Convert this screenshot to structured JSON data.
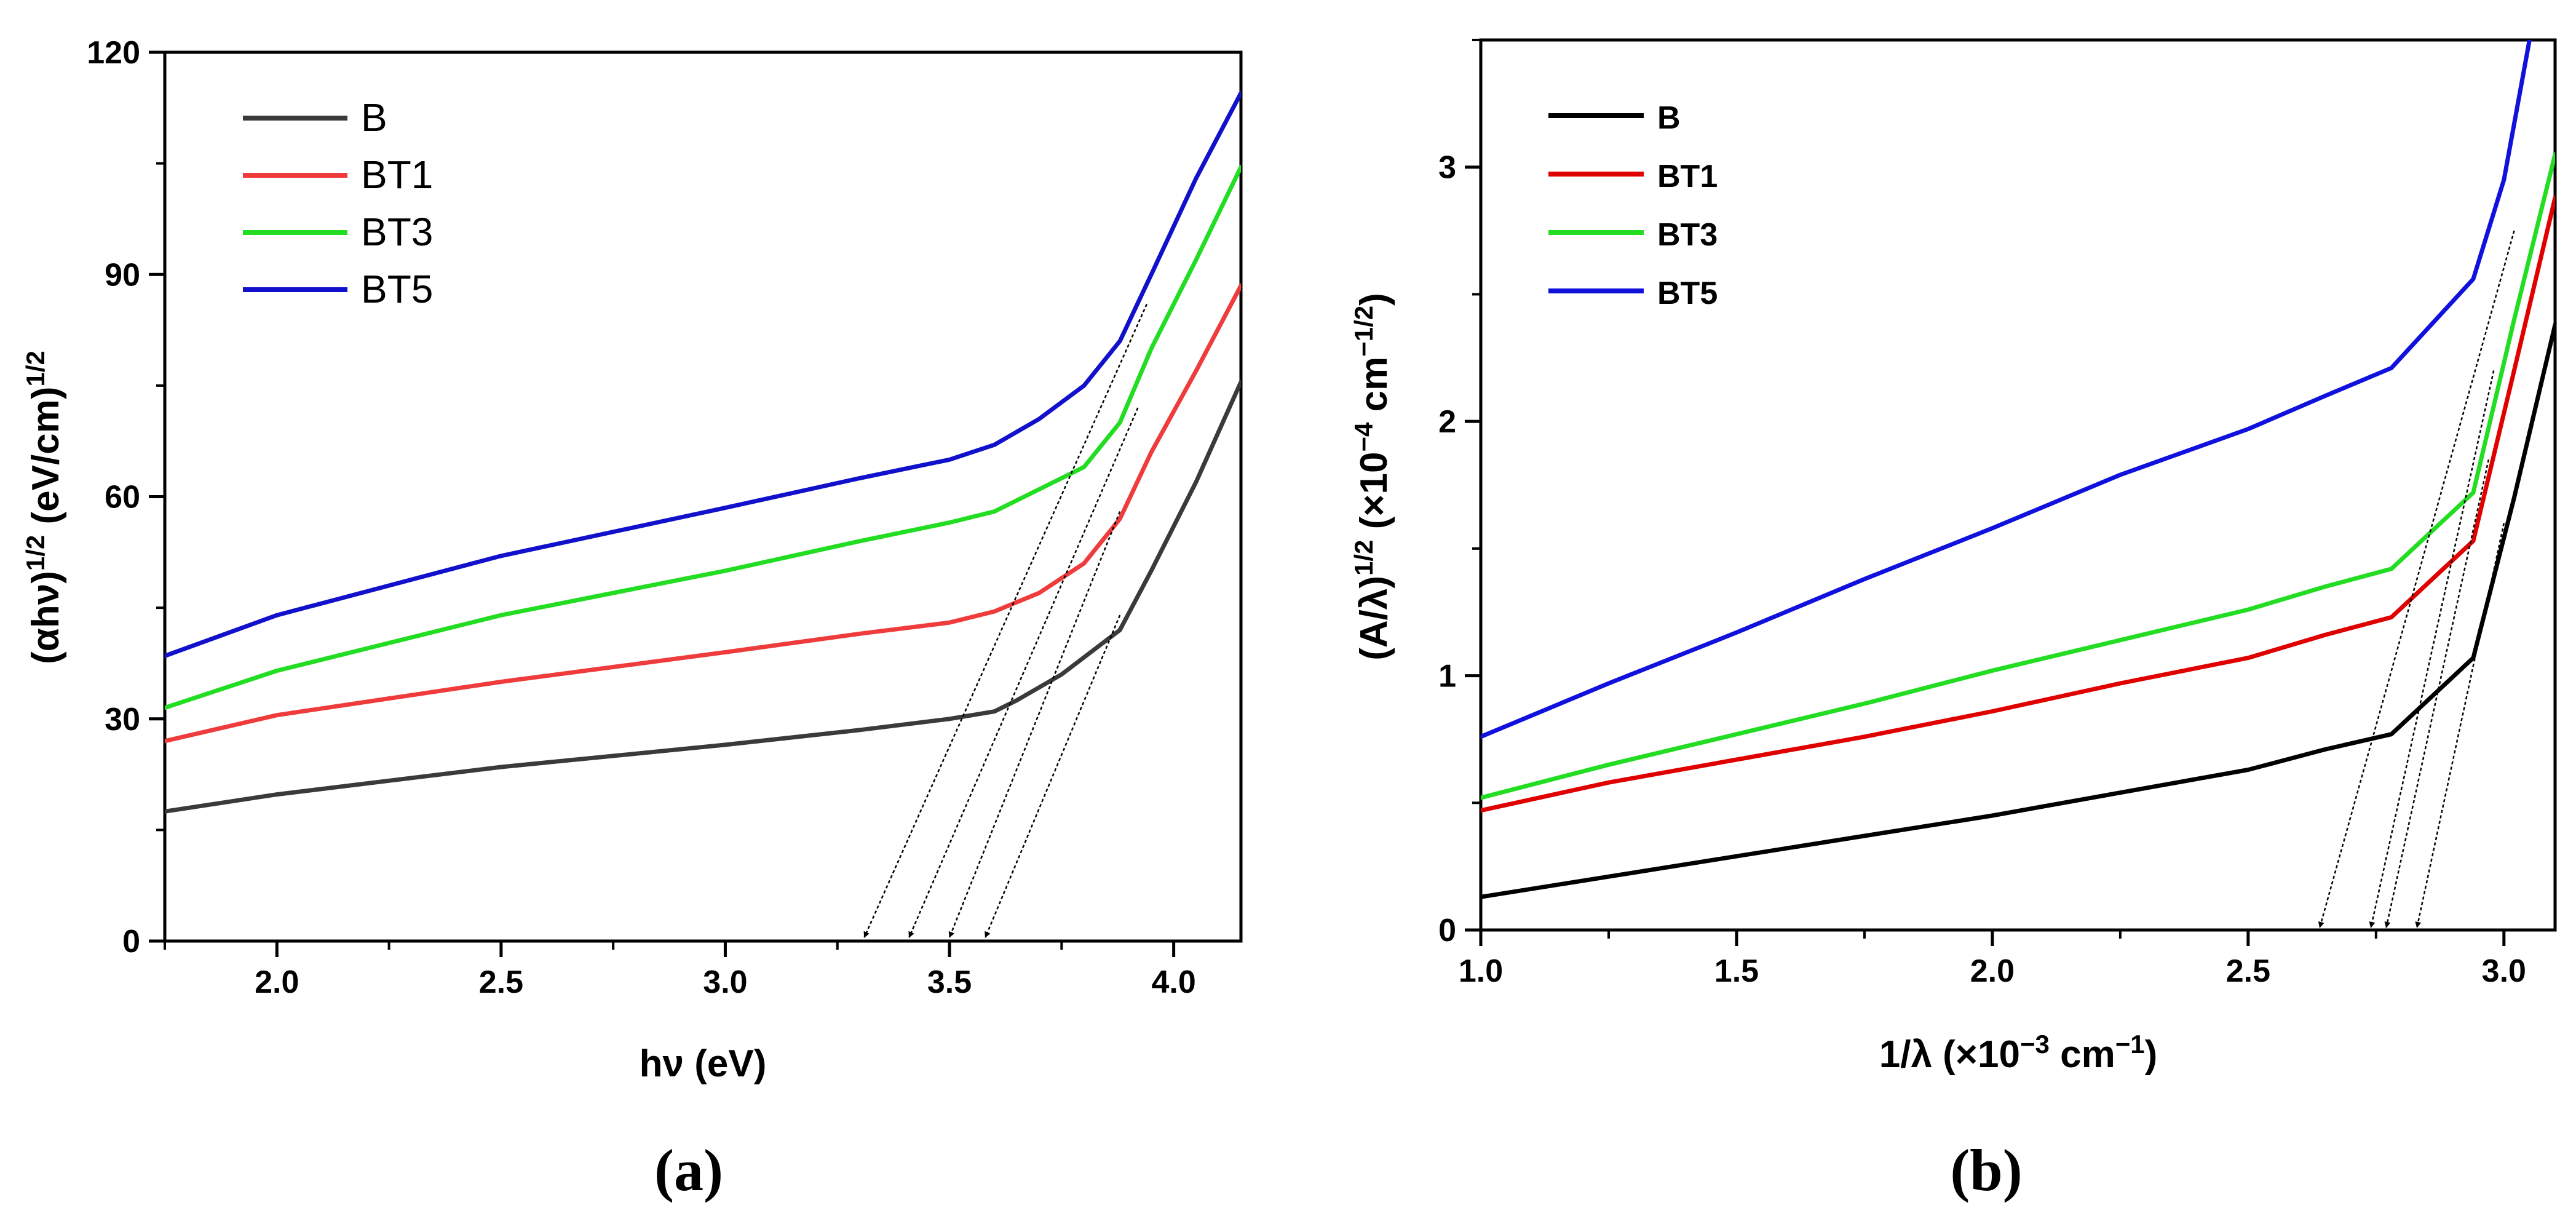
{
  "chart_data": [
    {
      "panel": "(a)",
      "type": "line",
      "xlabel": "hν (eV)",
      "ylabel": "(αhν)^1/2 (eV/cm)^1/2",
      "ylabel_main": "(αhν)",
      "ylabel_sup1": "1/2",
      "ylabel_unit": " (eV/cm)",
      "ylabel_sup2": "1/2",
      "xlim": [
        1.75,
        4.15
      ],
      "ylim": [
        0,
        120
      ],
      "xticks": [
        2.0,
        2.5,
        3.0,
        3.5,
        4.0
      ],
      "xtick_labels": [
        "2.0",
        "2.5",
        "3.0",
        "3.5",
        "4.0"
      ],
      "yticks": [
        0,
        30,
        60,
        90,
        120
      ],
      "ytick_labels": [
        "0",
        "30",
        "60",
        "90",
        "120"
      ],
      "legend_position": "top-left",
      "series": [
        {
          "name": "B",
          "color": "#3a3a3a",
          "x": [
            1.75,
            2.0,
            2.5,
            3.0,
            3.3,
            3.5,
            3.6,
            3.65,
            3.75,
            3.88,
            3.95,
            4.05,
            4.15
          ],
          "y": [
            17.5,
            19.8,
            23.5,
            26.5,
            28.5,
            30,
            31,
            32.5,
            36,
            42,
            50,
            62,
            75.5
          ]
        },
        {
          "name": "BT1",
          "color": "#ef3b3b",
          "x": [
            1.75,
            2.0,
            2.5,
            3.0,
            3.3,
            3.5,
            3.6,
            3.7,
            3.8,
            3.88,
            3.95,
            4.05,
            4.15
          ],
          "y": [
            27,
            30.5,
            35,
            39,
            41.5,
            43,
            44.5,
            47,
            51,
            57,
            66,
            77,
            88.5
          ]
        },
        {
          "name": "BT3",
          "color": "#22dd22",
          "x": [
            1.75,
            2.0,
            2.5,
            3.0,
            3.3,
            3.5,
            3.6,
            3.7,
            3.8,
            3.88,
            3.95,
            4.05,
            4.15
          ],
          "y": [
            31.5,
            36.5,
            44,
            50,
            54,
            56.5,
            58,
            61,
            64,
            70,
            80,
            92,
            104.5
          ]
        },
        {
          "name": "BT5",
          "color": "#1111cc",
          "x": [
            1.75,
            2.0,
            2.5,
            3.0,
            3.3,
            3.5,
            3.6,
            3.7,
            3.8,
            3.88,
            3.95,
            4.05,
            4.15
          ],
          "y": [
            38.5,
            44,
            52,
            58.5,
            62.5,
            65,
            67,
            70.5,
            75,
            81,
            90,
            103,
            114.5
          ]
        }
      ],
      "annotations": [
        {
          "type": "arrow",
          "from": [
            3.94,
            86
          ],
          "to": [
            3.31,
            0.5
          ]
        },
        {
          "type": "arrow",
          "from": [
            3.92,
            72
          ],
          "to": [
            3.41,
            0.5
          ]
        },
        {
          "type": "arrow",
          "from": [
            3.88,
            58
          ],
          "to": [
            3.5,
            0.5
          ]
        },
        {
          "type": "arrow",
          "from": [
            3.88,
            44
          ],
          "to": [
            3.58,
            0.5
          ]
        }
      ]
    },
    {
      "panel": "(b)",
      "type": "line",
      "xlabel": "1/λ (×10^-3 cm^-1)",
      "xlabel_main": "1/λ (×10",
      "xlabel_sup1": "−3",
      "xlabel_unit": " cm",
      "xlabel_sup2": "−1",
      "xlabel_close": ")",
      "ylabel": "(A/λ)^1/2 (×10^-4 cm^-1/2)",
      "ylabel_main": "(A/λ)",
      "ylabel_sup1": "1/2",
      "ylabel_unit": " (×10",
      "ylabel_sup2": "−4",
      "ylabel_unit2": " cm",
      "ylabel_sup3": "−1/2",
      "ylabel_close": ")",
      "xlim": [
        1.0,
        3.1
      ],
      "ylim": [
        0,
        3.5
      ],
      "xticks": [
        1.0,
        1.5,
        2.0,
        2.5,
        3.0
      ],
      "xtick_labels": [
        "1.0",
        "1.5",
        "2.0",
        "2.5",
        "3.0"
      ],
      "yticks": [
        0,
        1,
        2,
        3
      ],
      "ytick_labels": [
        "0",
        "1",
        "2",
        "3"
      ],
      "legend_position": "top-left",
      "series": [
        {
          "name": "B",
          "color": "#000000",
          "x": [
            1.0,
            1.25,
            1.5,
            1.75,
            2.0,
            2.25,
            2.5,
            2.65,
            2.78,
            2.94,
            3.02,
            3.1
          ],
          "y": [
            0.13,
            0.21,
            0.29,
            0.37,
            0.45,
            0.54,
            0.63,
            0.71,
            0.77,
            1.07,
            1.7,
            2.38
          ]
        },
        {
          "name": "BT1",
          "color": "#e00000",
          "x": [
            1.0,
            1.25,
            1.5,
            1.75,
            2.0,
            2.25,
            2.5,
            2.65,
            2.78,
            2.94,
            3.02,
            3.1
          ],
          "y": [
            0.47,
            0.58,
            0.67,
            0.76,
            0.86,
            0.97,
            1.07,
            1.16,
            1.23,
            1.53,
            2.2,
            2.88
          ]
        },
        {
          "name": "BT3",
          "color": "#22dd22",
          "x": [
            1.0,
            1.25,
            1.5,
            1.75,
            2.0,
            2.25,
            2.5,
            2.65,
            2.78,
            2.94,
            3.02,
            3.1
          ],
          "y": [
            0.52,
            0.65,
            0.77,
            0.89,
            1.02,
            1.14,
            1.26,
            1.35,
            1.42,
            1.72,
            2.4,
            3.05
          ]
        },
        {
          "name": "BT5",
          "color": "#1111dd",
          "x": [
            1.0,
            1.25,
            1.5,
            1.75,
            2.0,
            2.25,
            2.5,
            2.65,
            2.78,
            2.94,
            3.0,
            3.05
          ],
          "y": [
            0.76,
            0.97,
            1.17,
            1.38,
            1.58,
            1.79,
            1.97,
            2.1,
            2.21,
            2.56,
            2.95,
            3.5
          ]
        }
      ],
      "annotations": [
        {
          "type": "arrow",
          "from": [
            3.02,
            2.75
          ],
          "to": [
            2.64,
            0.01
          ]
        },
        {
          "type": "arrow",
          "from": [
            2.98,
            2.2
          ],
          "to": [
            2.74,
            0.01
          ]
        },
        {
          "type": "arrow",
          "from": [
            2.97,
            1.85
          ],
          "to": [
            2.77,
            0.01
          ]
        },
        {
          "type": "arrow",
          "from": [
            3.0,
            1.6
          ],
          "to": [
            2.83,
            0.01
          ]
        }
      ]
    }
  ],
  "panel_labels": [
    "(a)",
    "(b)"
  ]
}
